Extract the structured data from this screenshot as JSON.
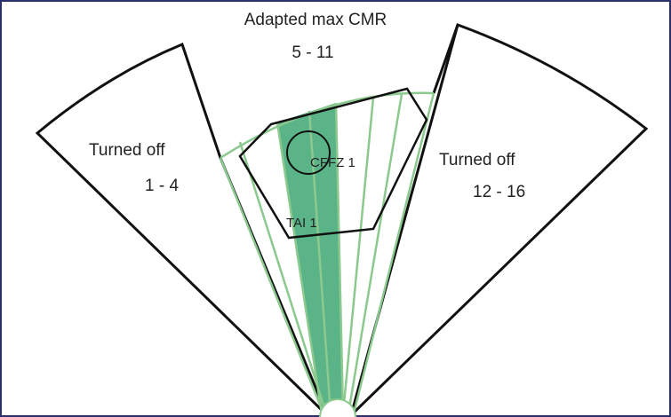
{
  "middle": {
    "title": "Adapted max CMR",
    "range": "5 - 11"
  },
  "left": {
    "title": "Turned off",
    "range": "1 - 4"
  },
  "right": {
    "title": "Turned off",
    "range": "12 - 16"
  },
  "zones": {
    "circle": "CFFZ 1",
    "polygon": "TAI 1"
  }
}
